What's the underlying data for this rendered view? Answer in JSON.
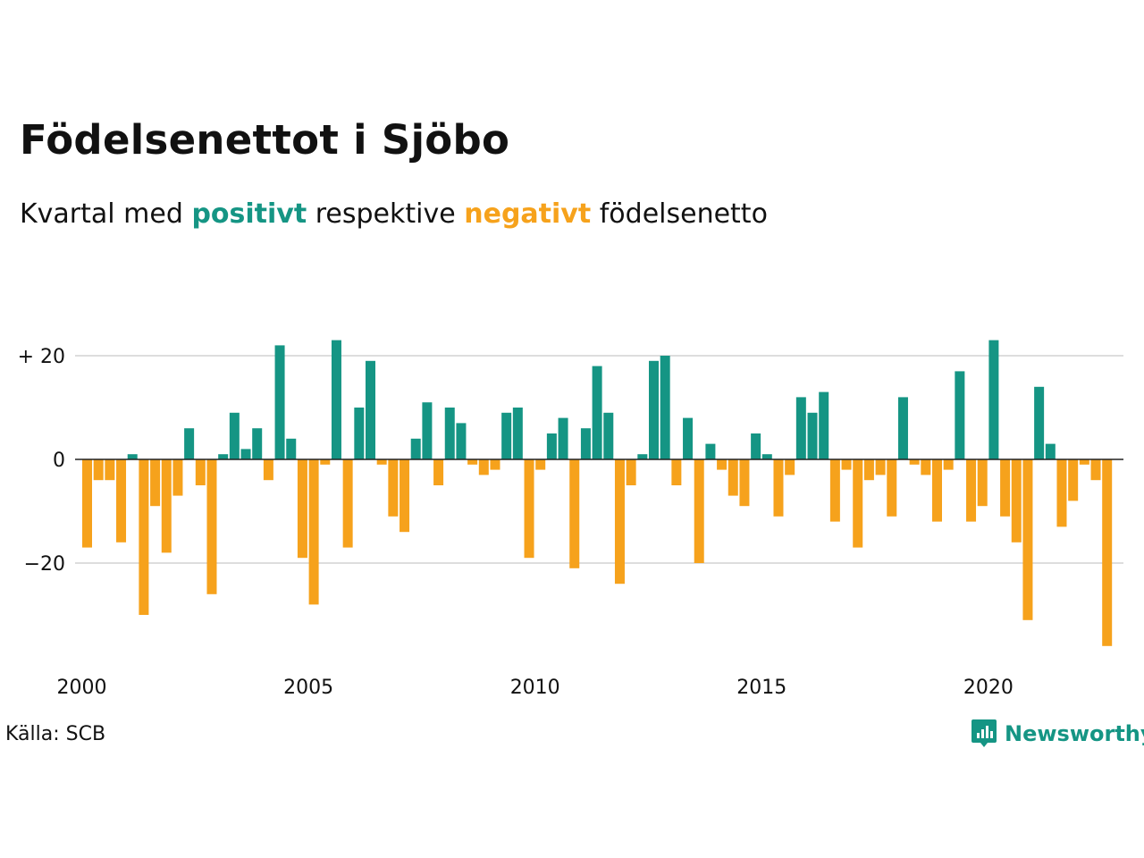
{
  "title": "Födelsenettot i Sjöbo",
  "subtitle": {
    "prefix": "Kvartal med",
    "positive_word": "positivt",
    "middle": "respektive",
    "negative_word": "negativt",
    "suffix": "födelsenetto"
  },
  "source": "Källa: SCB",
  "logo": {
    "text": "Newsworthy",
    "icon": "newsworthy-chart-bubble-icon"
  },
  "colors": {
    "positive": "#159584",
    "negative": "#f6a21c",
    "grid": "#dddddd",
    "baseline": "#222222"
  },
  "chart_data": {
    "type": "bar",
    "x_start": "2000 Q1",
    "frequency": "quarterly",
    "ylim": [
      -37,
      24
    ],
    "yticks": [
      20,
      0,
      -20
    ],
    "ytick_labels": [
      "+ 20",
      "0",
      "−20"
    ],
    "xticks": [
      2000,
      2005,
      2010,
      2015,
      2020
    ],
    "xtick_labels": [
      "2000",
      "2005",
      "2010",
      "2015",
      "2020"
    ],
    "grid": true,
    "values": [
      -17,
      -4,
      -4,
      -16,
      1,
      -30,
      -9,
      -18,
      -7,
      6,
      -5,
      -26,
      1,
      9,
      2,
      6,
      -4,
      22,
      4,
      -19,
      -28,
      -1,
      23,
      -17,
      10,
      19,
      -1,
      -11,
      -14,
      4,
      11,
      -5,
      10,
      7,
      -1,
      -3,
      -2,
      9,
      10,
      -19,
      -2,
      5,
      8,
      -21,
      6,
      18,
      9,
      -24,
      -5,
      1,
      19,
      20,
      -5,
      8,
      -20,
      3,
      -2,
      -7,
      -9,
      5,
      1,
      -11,
      -3,
      12,
      9,
      13,
      -12,
      -2,
      -17,
      -4,
      -3,
      -11,
      12,
      -1,
      -3,
      -12,
      -2,
      17,
      -12,
      -9,
      23,
      -11,
      -16,
      -31,
      14,
      3,
      -13,
      -8,
      -1,
      -4,
      -36
    ]
  }
}
